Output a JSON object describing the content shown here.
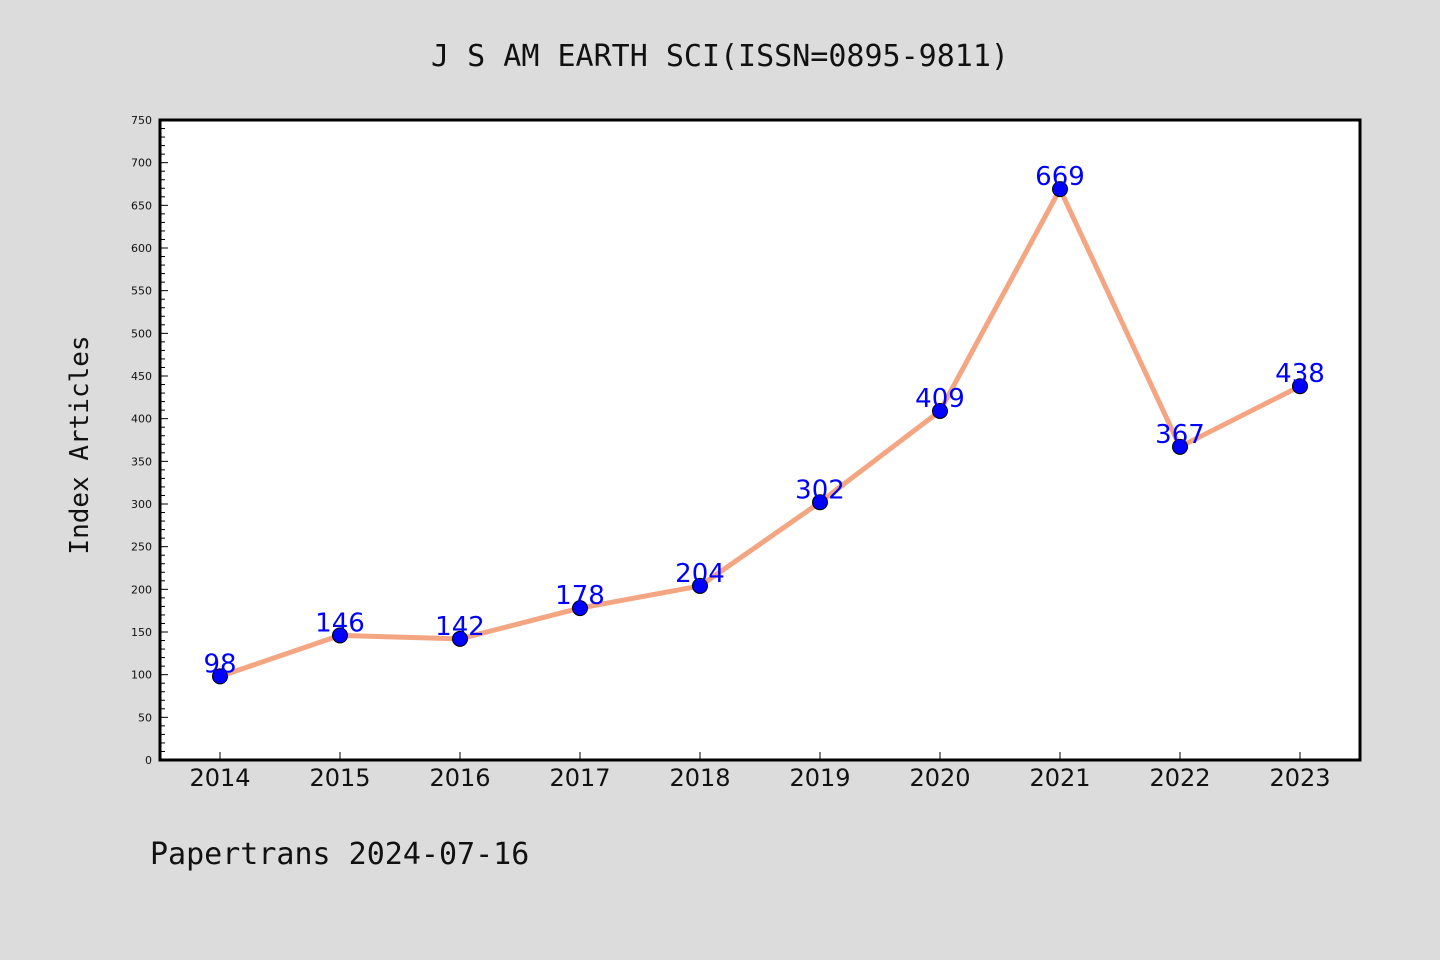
{
  "chart_data": {
    "type": "line",
    "title": "J S AM EARTH SCI(ISSN=0895-9811)",
    "xlabel": "",
    "ylabel": "Index Articles",
    "categories": [
      "2014",
      "2015",
      "2016",
      "2017",
      "2018",
      "2019",
      "2020",
      "2021",
      "2022",
      "2023"
    ],
    "series": [
      {
        "values": [
          98,
          146,
          142,
          178,
          204,
          302,
          409,
          669,
          367,
          438
        ],
        "line_color": "#f4a582",
        "marker_color": "#0000ff"
      }
    ],
    "ylim": [
      0,
      750
    ],
    "yticks": [
      0,
      50,
      100,
      150,
      200,
      250,
      300,
      350,
      400,
      450,
      500,
      550,
      600,
      650,
      700,
      750
    ],
    "grid": false,
    "data_labels": true
  },
  "footer": {
    "text": "Papertrans 2024-07-16"
  },
  "colors": {
    "background": "#dcdcdc",
    "plot_background": "#ffffff",
    "label_color": "#0000ff"
  }
}
